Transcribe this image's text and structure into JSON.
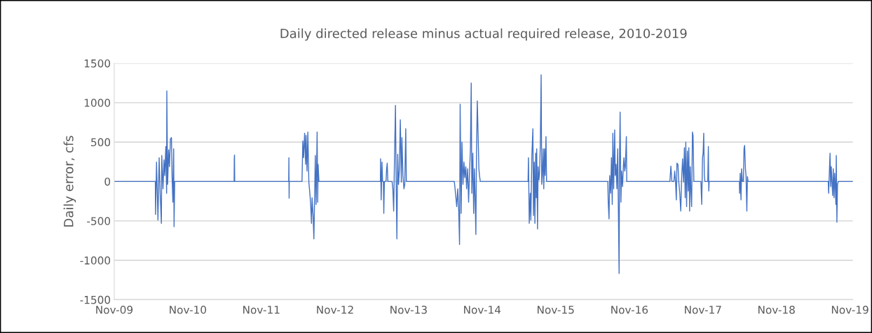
{
  "chart_data": {
    "type": "line",
    "title": "Daily directed release minus actual required release, 2010-2019",
    "ylabel": "Daily error, cfs",
    "xlim": [
      "2009-11-01",
      "2019-11-15"
    ],
    "ylim": [
      -1500,
      1500
    ],
    "yticks": [
      -1500,
      -1000,
      -500,
      0,
      500,
      1000,
      1500
    ],
    "xticks": [
      {
        "value": "2009-11-01",
        "label": "Nov-09"
      },
      {
        "value": "2010-11-01",
        "label": "Nov-10"
      },
      {
        "value": "2011-11-01",
        "label": "Nov-11"
      },
      {
        "value": "2012-11-01",
        "label": "Nov-12"
      },
      {
        "value": "2013-11-01",
        "label": "Nov-13"
      },
      {
        "value": "2014-11-01",
        "label": "Nov-14"
      },
      {
        "value": "2015-11-01",
        "label": "Nov-15"
      },
      {
        "value": "2016-11-01",
        "label": "Nov-16"
      },
      {
        "value": "2017-11-01",
        "label": "Nov-17"
      },
      {
        "value": "2018-11-01",
        "label": "Nov-18"
      },
      {
        "value": "2019-11-01",
        "label": "Nov-19"
      }
    ],
    "grid": "y",
    "line_style": "solid",
    "series": [
      {
        "color": "#4472c4",
        "x": [
          "2009-11-01",
          "2010-05-24",
          "2010-05-25",
          "2010-05-30",
          "2010-06-06",
          "2010-06-12",
          "2010-06-17",
          "2010-06-23",
          "2010-06-25",
          "2010-07-01",
          "2010-07-06",
          "2010-07-10",
          "2010-07-15",
          "2010-07-19",
          "2010-07-20",
          "2010-07-24",
          "2010-07-29",
          "2010-08-02",
          "2010-08-07",
          "2010-08-12",
          "2010-08-15",
          "2010-08-19",
          "2010-08-21",
          "2010-08-23",
          "2010-08-25",
          "2010-08-28",
          "2011-06-19",
          "2011-06-20",
          "2011-06-21",
          "2011-06-22",
          "2012-03-16",
          "2012-03-17",
          "2012-03-18",
          "2012-03-19",
          "2012-05-21",
          "2012-05-25",
          "2012-05-29",
          "2012-06-03",
          "2012-06-08",
          "2012-06-10",
          "2012-06-15",
          "2012-06-19",
          "2012-06-24",
          "2012-06-29",
          "2012-07-03",
          "2012-07-07",
          "2012-07-10",
          "2012-07-15",
          "2012-07-19",
          "2012-07-23",
          "2012-07-26",
          "2012-07-30",
          "2012-08-04",
          "2012-08-07",
          "2012-08-09",
          "2012-08-13",
          "2013-06-14",
          "2013-06-15",
          "2013-06-18",
          "2013-06-22",
          "2013-06-25",
          "2013-06-29",
          "2013-07-01",
          "2013-07-04",
          "2013-07-12",
          "2013-07-15",
          "2013-07-18",
          "2013-07-21",
          "2013-08-11",
          "2013-08-15",
          "2013-08-19",
          "2013-08-23",
          "2013-08-28",
          "2013-08-31",
          "2013-09-04",
          "2013-09-08",
          "2013-09-12",
          "2013-09-16",
          "2013-09-21",
          "2013-09-26",
          "2013-09-29",
          "2013-10-04",
          "2013-10-09",
          "2013-10-13",
          "2013-10-18",
          "2013-10-21",
          "2014-06-16",
          "2014-06-22",
          "2014-06-28",
          "2014-07-03",
          "2014-07-08",
          "2014-07-12",
          "2014-07-15",
          "2014-07-20",
          "2014-07-24",
          "2014-07-29",
          "2014-08-03",
          "2014-08-07",
          "2014-08-12",
          "2014-08-16",
          "2014-08-21",
          "2014-08-26",
          "2014-08-30",
          "2014-09-04",
          "2014-09-08",
          "2014-09-11",
          "2014-09-16",
          "2014-09-20",
          "2014-09-24",
          "2014-09-27",
          "2014-10-01",
          "2014-10-04",
          "2014-10-08",
          "2014-10-12",
          "2014-10-16",
          "2014-10-19",
          "2014-10-23",
          "2015-06-17",
          "2015-06-19",
          "2015-06-23",
          "2015-06-28",
          "2015-07-01",
          "2015-07-06",
          "2015-07-11",
          "2015-07-14",
          "2015-07-18",
          "2015-07-21",
          "2015-07-25",
          "2015-07-28",
          "2015-07-30",
          "2015-08-03",
          "2015-08-06",
          "2015-08-10",
          "2015-08-13",
          "2015-08-17",
          "2015-08-21",
          "2015-08-24",
          "2015-08-27",
          "2015-08-31",
          "2015-09-03",
          "2015-09-07",
          "2015-09-10",
          "2015-09-14",
          "2015-09-17",
          "2016-07-17",
          "2016-07-19",
          "2016-07-23",
          "2016-07-26",
          "2016-07-31",
          "2016-08-04",
          "2016-08-08",
          "2016-08-11",
          "2016-08-15",
          "2016-08-20",
          "2016-08-23",
          "2016-08-27",
          "2016-08-31",
          "2016-09-04",
          "2016-09-07",
          "2016-09-11",
          "2016-09-13",
          "2016-09-16",
          "2016-09-20",
          "2016-09-23",
          "2016-09-28",
          "2016-10-02",
          "2016-10-05",
          "2016-10-09",
          "2016-10-12",
          "2016-10-17",
          "2016-10-19",
          "2017-05-21",
          "2017-05-26",
          "2017-05-31",
          "2017-06-10",
          "2017-06-14",
          "2017-06-18",
          "2017-06-22",
          "2017-06-25",
          "2017-06-30",
          "2017-07-04",
          "2017-07-09",
          "2017-07-14",
          "2017-07-18",
          "2017-07-23",
          "2017-07-28",
          "2017-08-01",
          "2017-08-05",
          "2017-08-08",
          "2017-08-12",
          "2017-08-16",
          "2017-08-20",
          "2017-08-23",
          "2017-08-27",
          "2017-08-30",
          "2017-09-03",
          "2017-09-06",
          "2017-09-10",
          "2017-09-13",
          "2017-09-17",
          "2017-10-22",
          "2017-10-26",
          "2017-10-30",
          "2017-11-02",
          "2017-11-05",
          "2017-11-08",
          "2017-11-11",
          "2017-11-25",
          "2017-11-28",
          "2017-11-30",
          "2017-12-02",
          "2018-05-01",
          "2018-05-02",
          "2018-05-05",
          "2018-05-09",
          "2018-05-12",
          "2018-05-16",
          "2018-05-21",
          "2018-05-24",
          "2018-05-27",
          "2018-05-31",
          "2018-06-03",
          "2018-06-07",
          "2018-06-10",
          "2018-06-13",
          "2019-07-16",
          "2019-07-18",
          "2019-07-21",
          "2019-07-25",
          "2019-07-28",
          "2019-07-31",
          "2019-08-03",
          "2019-08-07",
          "2019-08-10",
          "2019-08-14",
          "2019-08-17",
          "2019-08-21",
          "2019-08-23",
          "2019-08-25",
          "2019-08-28",
          "2019-08-31",
          "2019-09-04",
          "2019-11-15"
        ],
        "values": [
          0,
          0,
          -418,
          246,
          -489,
          302,
          -150,
          -531,
          330,
          -93,
          274,
          76,
          444,
          -150,
          1150,
          -37,
          401,
          189,
          542,
          557,
          76,
          -263,
          133,
          415,
          -573,
          0,
          0,
          300,
          336,
          0,
          0,
          302,
          -212,
          0,
          0,
          514,
          302,
          613,
          218,
          585,
          133,
          627,
          -8,
          -150,
          -291,
          -531,
          -206,
          -432,
          -729,
          -150,
          330,
          -291,
          627,
          -263,
          218,
          0,
          0,
          288,
          -234,
          246,
          0,
          0,
          -404,
          0,
          0,
          161,
          232,
          0,
          0,
          -93,
          -376,
          274,
          966,
          76,
          -729,
          345,
          -37,
          133,
          783,
          -8,
          557,
          76,
          -93,
          -37,
          670,
          0,
          0,
          -150,
          -319,
          -93,
          -376,
          -800,
          980,
          -404,
          500,
          -37,
          246,
          48,
          189,
          -93,
          161,
          -263,
          76,
          415,
          1249,
          -150,
          359,
          -404,
          161,
          -178,
          -672,
          330,
          1023,
          613,
          161,
          76,
          0,
          0,
          302,
          -531,
          -150,
          -489,
          330,
          670,
          -432,
          246,
          -531,
          359,
          -206,
          415,
          -602,
          189,
          20,
          105,
          472,
          1353,
          -37,
          76,
          415,
          -93,
          415,
          76,
          571,
          0,
          0,
          -263,
          -475,
          76,
          -150,
          302,
          -291,
          613,
          -93,
          655,
          76,
          218,
          -93,
          415,
          -263,
          -1167,
          274,
          881,
          -263,
          133,
          -65,
          189,
          302,
          133,
          189,
          571,
          0,
          0,
          195,
          0,
          0,
          133,
          0,
          -234,
          232,
          218,
          0,
          -150,
          -376,
          20,
          288,
          -8,
          429,
          -206,
          500,
          -319,
          387,
          -121,
          429,
          -376,
          189,
          -150,
          -319,
          627,
          585,
          0,
          0,
          -291,
          302,
          359,
          613,
          76,
          0,
          0,
          444,
          -121,
          0,
          0,
          -150,
          105,
          -234,
          161,
          0,
          0,
          415,
          458,
          161,
          76,
          -376,
          62,
          0,
          0,
          -150,
          76,
          359,
          -65,
          189,
          20,
          -178,
          161,
          -206,
          105,
          -121,
          -291,
          330,
          -517,
          -37,
          0,
          0
        ]
      }
    ]
  }
}
